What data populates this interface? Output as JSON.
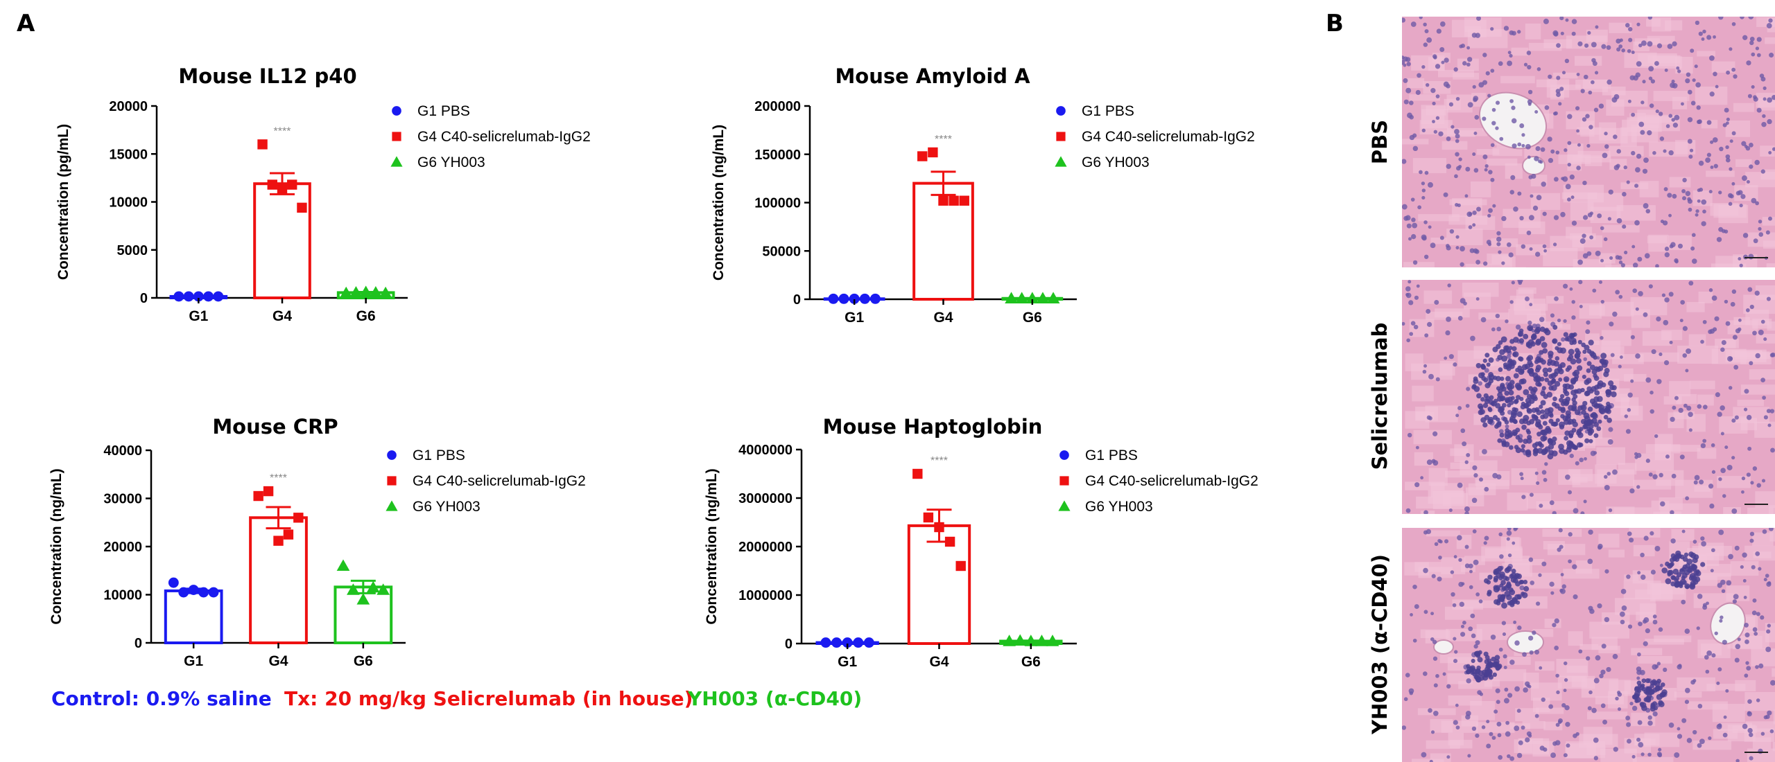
{
  "panel_labels": {
    "a": "A",
    "b": "B"
  },
  "footer": {
    "control": "Control: 0.9% saline",
    "tx": "Tx: 20 mg/kg Selicrelumab (in house)",
    "yh": "YH003 (α-CD40)"
  },
  "colors": {
    "G1": "#1a1af0",
    "G4": "#ee1111",
    "G6": "#1ec21e",
    "sig": "#888888"
  },
  "histology": [
    {
      "label": "PBS",
      "tone": "liver-normal"
    },
    {
      "label": "Selicrelumab",
      "tone": "liver-infiltrate"
    },
    {
      "label": "YH003 (α-CD40)",
      "tone": "liver-foci"
    }
  ],
  "chart_data": [
    {
      "type": "bar",
      "title": "Mouse IL12 p40",
      "ylabel": "Concentration (pg/mL)",
      "categories": [
        "G1",
        "G4",
        "G6"
      ],
      "ylim": [
        0,
        20000
      ],
      "yticks": [
        "0",
        "5000",
        "10000",
        "15000",
        "20000"
      ],
      "significance": [
        "",
        "****",
        ""
      ],
      "legend": [
        "G1 PBS",
        "G4 C40-selicrelumab-IgG2",
        "G6 YH003"
      ],
      "series": [
        {
          "name": "G1 PBS",
          "marker": "circle",
          "mean": 150,
          "sem": 30,
          "points": [
            150,
            150,
            150,
            150,
            150
          ]
        },
        {
          "name": "G4 C40-selicrelumab-IgG2",
          "marker": "square",
          "mean": 11900,
          "sem": 1100,
          "points": [
            16000,
            11800,
            11300,
            11800,
            9400
          ]
        },
        {
          "name": "G6 YH003",
          "marker": "triangle",
          "mean": 550,
          "sem": 60,
          "points": [
            500,
            550,
            600,
            550,
            500
          ]
        }
      ]
    },
    {
      "type": "bar",
      "title": "Mouse Amyloid A",
      "ylabel": "Concentration (ng/mL)",
      "categories": [
        "G1",
        "G4",
        "G6"
      ],
      "ylim": [
        0,
        200000
      ],
      "yticks": [
        "0",
        "50000",
        "100000",
        "150000",
        "200000"
      ],
      "significance": [
        "",
        "****",
        ""
      ],
      "legend": [
        "G1 PBS",
        "G4 C40-selicrelumab-IgG2",
        "G6 YH003"
      ],
      "series": [
        {
          "name": "G1 PBS",
          "marker": "circle",
          "mean": 500,
          "sem": 100,
          "points": [
            500,
            500,
            500,
            500,
            500
          ]
        },
        {
          "name": "G4 C40-selicrelumab-IgG2",
          "marker": "square",
          "mean": 120000,
          "sem": 12000,
          "points": [
            148000,
            152000,
            102000,
            102000,
            102000
          ]
        },
        {
          "name": "G6 YH003",
          "marker": "triangle",
          "mean": 900,
          "sem": 150,
          "points": [
            900,
            900,
            900,
            900,
            900
          ]
        }
      ]
    },
    {
      "type": "bar",
      "title": "Mouse CRP",
      "ylabel": "Concentration (ng/mL)",
      "categories": [
        "G1",
        "G4",
        "G6"
      ],
      "ylim": [
        0,
        40000
      ],
      "yticks": [
        "0",
        "10000",
        "20000",
        "30000",
        "40000"
      ],
      "significance": [
        "",
        "****",
        ""
      ],
      "legend": [
        "G1 PBS",
        "G4 C40-selicrelumab-IgG2",
        "G6 YH003"
      ],
      "series": [
        {
          "name": "G1 PBS",
          "marker": "circle",
          "mean": 10800,
          "sem": 450,
          "points": [
            12500,
            10500,
            11000,
            10500,
            10500
          ]
        },
        {
          "name": "G4 C40-selicrelumab-IgG2",
          "marker": "square",
          "mean": 26000,
          "sem": 2200,
          "points": [
            30500,
            31500,
            21200,
            22500,
            26000
          ]
        },
        {
          "name": "G6 YH003",
          "marker": "triangle",
          "mean": 11600,
          "sem": 1300,
          "points": [
            16000,
            11000,
            9000,
            11500,
            11000
          ]
        }
      ]
    },
    {
      "type": "bar",
      "title": "Mouse Haptoglobin",
      "ylabel": "Concentration (ng/mL)",
      "categories": [
        "G1",
        "G4",
        "G6"
      ],
      "ylim": [
        0,
        4000000
      ],
      "yticks": [
        "0",
        "1000000",
        "2000000",
        "3000000",
        "4000000"
      ],
      "significance": [
        "",
        "****",
        ""
      ],
      "legend": [
        "G1 PBS",
        "G4 C40-selicrelumab-IgG2",
        "G6 YH003"
      ],
      "series": [
        {
          "name": "G1 PBS",
          "marker": "circle",
          "mean": 20000,
          "sem": 5000,
          "points": [
            20000,
            20000,
            20000,
            20000,
            20000
          ]
        },
        {
          "name": "G4 C40-selicrelumab-IgG2",
          "marker": "square",
          "mean": 2430000,
          "sem": 330000,
          "points": [
            3500000,
            2600000,
            2400000,
            2100000,
            1600000
          ]
        },
        {
          "name": "G6 YH003",
          "marker": "triangle",
          "mean": 50000,
          "sem": 10000,
          "points": [
            50000,
            60000,
            50000,
            50000,
            50000
          ]
        }
      ]
    }
  ]
}
